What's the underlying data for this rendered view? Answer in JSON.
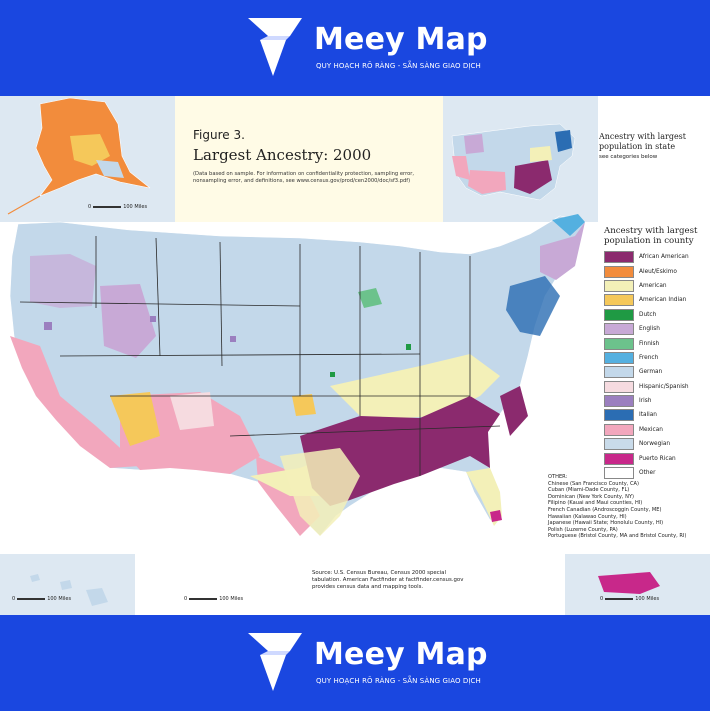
{
  "brand": {
    "name": "Meey Map",
    "tagline": "QUY HOẠCH RÕ RÀNG - SẴN SÀNG GIAO DỊCH"
  },
  "figure": {
    "number": "Figure 3.",
    "title": "Largest Ancestry: 2000",
    "note": "(Data based on sample. For information on confidentiality protection, sampling error, nonsampling error, and definitions, see www.census.gov/prod/cen2000/doc/sf3.pdf)"
  },
  "state_inset": {
    "title": "Ancestry with largest population in state",
    "subtitle": "see categories below"
  },
  "legend": {
    "title": "Ancestry with largest population in county",
    "items": [
      {
        "label": "African American",
        "color": "#8b2a6e"
      },
      {
        "label": "Aleut/Eskimo",
        "color": "#f28c3c"
      },
      {
        "label": "American",
        "color": "#f3f0b8"
      },
      {
        "label": "American Indian",
        "color": "#f5c85a"
      },
      {
        "label": "Dutch",
        "color": "#1f9a44"
      },
      {
        "label": "English",
        "color": "#c8a9d6"
      },
      {
        "label": "Finnish",
        "color": "#6cc28c"
      },
      {
        "label": "French",
        "color": "#54b0e0"
      },
      {
        "label": "German",
        "color": "#c3d8ea"
      },
      {
        "label": "Hispanic/Spanish",
        "color": "#f6dbe0"
      },
      {
        "label": "Irish",
        "color": "#9b7fbf"
      },
      {
        "label": "Italian",
        "color": "#2b6db3"
      },
      {
        "label": "Mexican",
        "color": "#f2a7bd"
      },
      {
        "label": "Norwegian",
        "color": "#c9dbea"
      },
      {
        "label": "Puerto Rican",
        "color": "#c8288a"
      },
      {
        "label": "Other",
        "color": "#ffffff"
      }
    ]
  },
  "other": {
    "heading": "OTHER:",
    "lines": [
      "Chinese (San Francisco County, CA)",
      "Cuban (Miami-Dade County, FL)",
      "Dominican (New York County, NY)",
      "Filipino (Kauai and Maui counties, HI)",
      "French Canadian (Androscoggin County, ME)",
      "Hawaiian (Kalawao County, HI)",
      "Japanese (Hawaii State; Honolulu County, HI)",
      "Polish (Luzerne County, PA)",
      "Portuguese (Bristol County, MA and Bristol County, RI)"
    ]
  },
  "source": "Source: U.S. Census Bureau, Census 2000 special tabulation. American Factfinder at factfinder.census.gov provides census data and mapping tools.",
  "scales": {
    "alaska": "100 Miles",
    "main": "100 Miles",
    "hawaii": "100 Miles",
    "puerto_rico": "100 Miles",
    "zero": "0"
  }
}
